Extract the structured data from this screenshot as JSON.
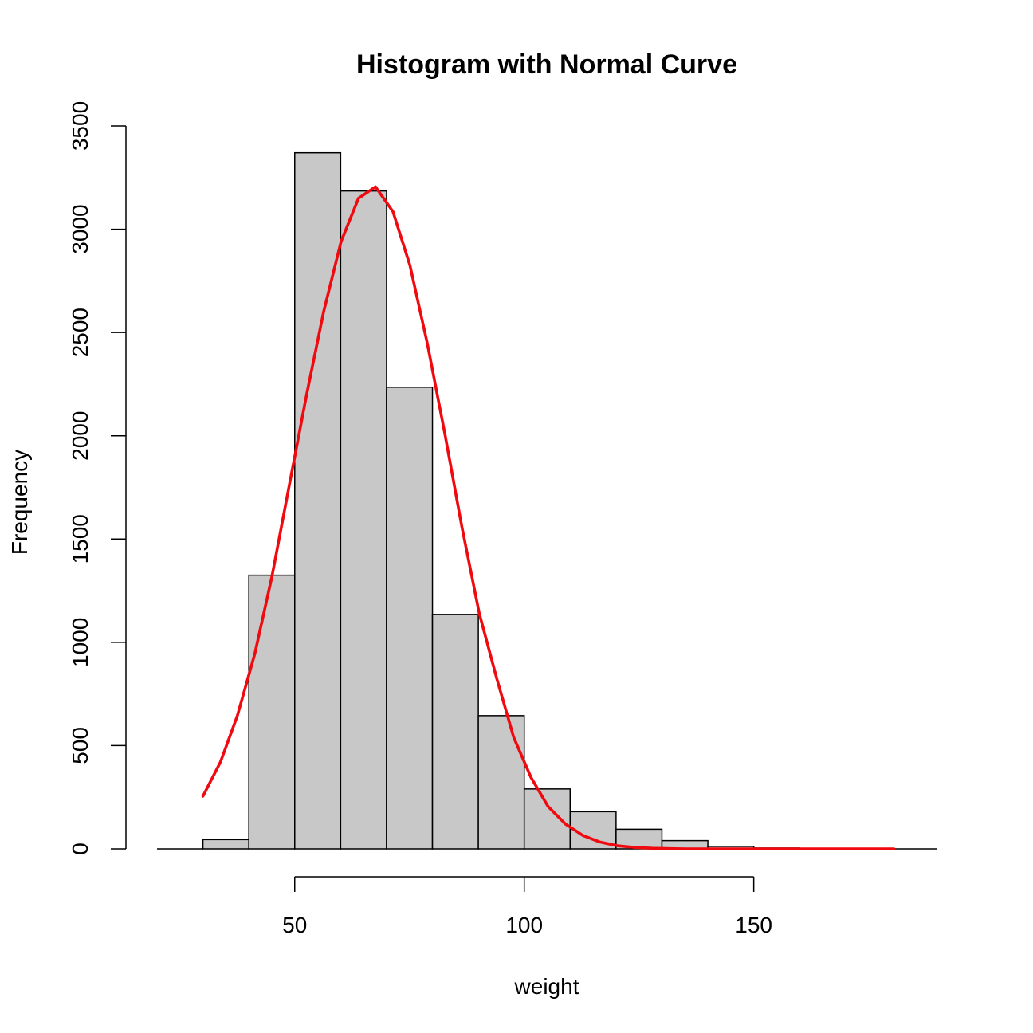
{
  "chart_data": {
    "type": "bar",
    "title": "Histogram with Normal Curve",
    "xlabel": "weight",
    "ylabel": "Frequency",
    "xlim": [
      20,
      190
    ],
    "ylim": [
      0,
      3500
    ],
    "x_ticks": [
      50,
      100,
      150
    ],
    "y_ticks": [
      0,
      500,
      1000,
      1500,
      2000,
      2500,
      3000,
      3500
    ],
    "bins": [
      {
        "from": 20,
        "to": 30,
        "count": 0
      },
      {
        "from": 30,
        "to": 40,
        "count": 45
      },
      {
        "from": 40,
        "to": 50,
        "count": 1325
      },
      {
        "from": 50,
        "to": 60,
        "count": 3370
      },
      {
        "from": 60,
        "to": 70,
        "count": 3185
      },
      {
        "from": 70,
        "to": 80,
        "count": 2235
      },
      {
        "from": 80,
        "to": 90,
        "count": 1135
      },
      {
        "from": 90,
        "to": 100,
        "count": 645
      },
      {
        "from": 100,
        "to": 110,
        "count": 290
      },
      {
        "from": 110,
        "to": 120,
        "count": 180
      },
      {
        "from": 120,
        "to": 130,
        "count": 95
      },
      {
        "from": 130,
        "to": 140,
        "count": 40
      },
      {
        "from": 140,
        "to": 150,
        "count": 12
      },
      {
        "from": 150,
        "to": 160,
        "count": 4
      },
      {
        "from": 160,
        "to": 170,
        "count": 2
      },
      {
        "from": 170,
        "to": 180,
        "count": 1
      },
      {
        "from": 180,
        "to": 190,
        "count": 0
      }
    ],
    "curve": {
      "x": [
        30,
        33.8,
        37.5,
        41.3,
        45,
        48.8,
        52.6,
        56.3,
        60.1,
        63.9,
        67.6,
        71.4,
        75.1,
        78.9,
        82.7,
        86.4,
        90.2,
        94,
        97.7,
        101.5,
        105.2,
        109,
        112.8,
        116.5,
        120.3,
        124.1,
        127.8,
        131.6,
        135.3,
        139.1,
        142.9,
        146.6,
        150.4,
        154.2,
        157.9,
        161.7,
        165.4,
        169.2,
        173,
        176.7,
        180.5
      ],
      "y": [
        255,
        420,
        645,
        945,
        1315,
        1760,
        2200,
        2600,
        2940,
        3150,
        3205,
        3085,
        2825,
        2445,
        2010,
        1560,
        1140,
        825,
        540,
        345,
        205,
        120,
        65,
        33,
        15,
        7,
        3,
        1,
        0,
        0,
        0,
        0,
        0,
        0,
        0,
        0,
        0,
        0,
        0,
        0,
        0
      ]
    },
    "colors": {
      "bar_fill": "#c8c8c8",
      "bar_stroke": "#000000",
      "curve": "#f0090f"
    },
    "grid": false,
    "legend": "none"
  }
}
